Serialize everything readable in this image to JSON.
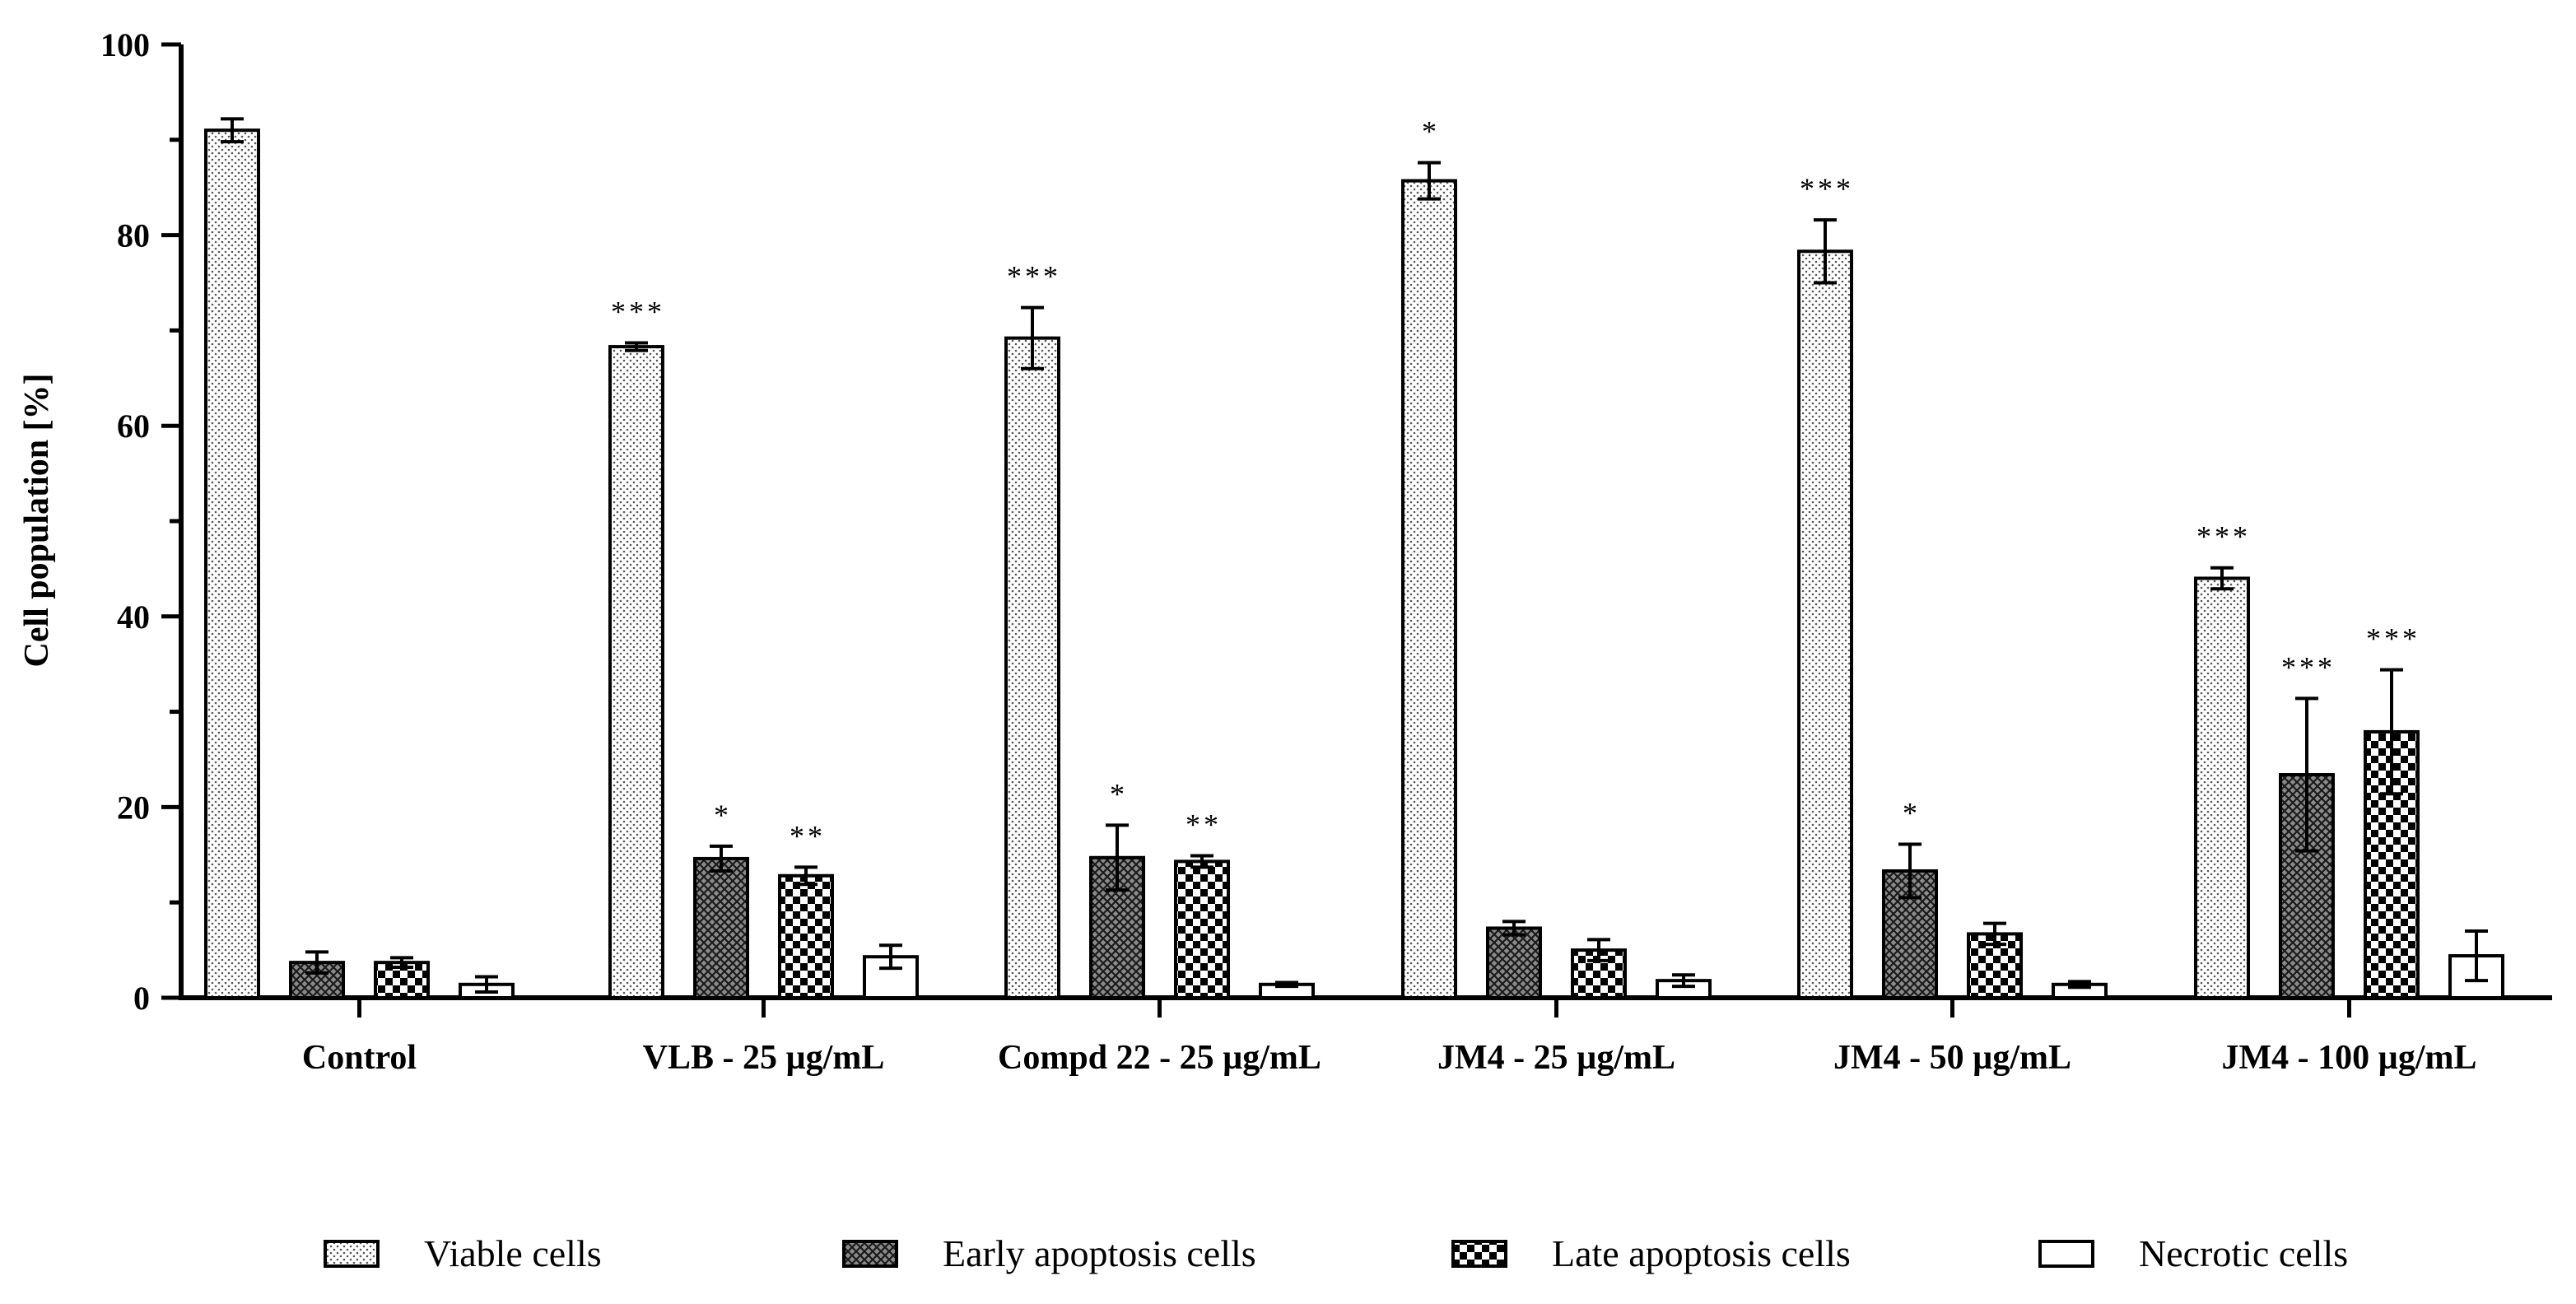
{
  "chart_data": {
    "type": "bar",
    "title": "",
    "xlabel": "",
    "ylabel": "Cell population [%]",
    "ylim": [
      0,
      100
    ],
    "yticks": [
      "0",
      "20",
      "40",
      "60",
      "80",
      "100"
    ],
    "categories": [
      "Control",
      "VLB - 25 µg/mL",
      "Compd 22 - 25 µg/mL",
      "JM4 - 25 µg/mL",
      "JM4 - 50 µg/mL",
      "JM4 - 100 µg/mL"
    ],
    "series": [
      {
        "name": "Viable cells",
        "pattern": "dots",
        "values": [
          91.0,
          68.3,
          69.2,
          85.7,
          78.3,
          44.0
        ],
        "errors": [
          1.2,
          0.4,
          3.2,
          1.9,
          3.3,
          1.1
        ],
        "significance": [
          "",
          "***",
          "***",
          "*",
          "***",
          "***"
        ]
      },
      {
        "name": "Early apoptosis cells",
        "pattern": "crosshatch",
        "values": [
          3.7,
          14.6,
          14.7,
          7.3,
          13.3,
          23.4
        ],
        "errors": [
          1.1,
          1.3,
          3.4,
          0.7,
          2.8,
          8.0
        ],
        "significance": [
          "",
          "*",
          "*",
          "",
          "*",
          "***"
        ]
      },
      {
        "name": "Late apoptosis cells",
        "pattern": "checker",
        "values": [
          3.7,
          12.8,
          14.3,
          5.0,
          6.7,
          27.9
        ],
        "errors": [
          0.5,
          0.9,
          0.6,
          1.1,
          1.1,
          6.5
        ],
        "significance": [
          "",
          "**",
          "**",
          "",
          "",
          "***"
        ]
      },
      {
        "name": "Necrotic cells",
        "pattern": "none",
        "values": [
          1.4,
          4.3,
          1.4,
          1.8,
          1.4,
          4.4
        ],
        "errors": [
          0.8,
          1.2,
          0.2,
          0.6,
          0.3,
          2.6
        ],
        "significance": [
          "",
          "",
          "",
          "",
          "",
          ""
        ]
      }
    ],
    "legend_position": "bottom"
  }
}
